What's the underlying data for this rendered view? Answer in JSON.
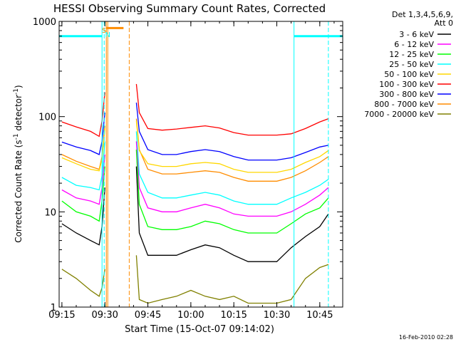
{
  "chart_data": {
    "type": "line",
    "title": "HESSI Observing Summary Count Rates, Corrected",
    "xlabel": "Start Time (15-Oct-07 09:14:02)",
    "ylabel": "Corrected Count Rate (s",
    "ylabel_sup": "-1",
    "ylabel_mid": " detector",
    "ylabel_end": ")",
    "yscale": "log",
    "ylim": [
      1,
      1000
    ],
    "xlim": [
      "09:14:02",
      "10:53:00"
    ],
    "x_ticks": [
      "09:15",
      "09:30",
      "09:45",
      "10:00",
      "10:15",
      "10:30",
      "10:45"
    ],
    "y_ticks": [
      "1",
      "10",
      "100",
      "1000"
    ],
    "legend": {
      "position": "top-right",
      "header": [
        "Det 1,3,4,5,6,9,",
        "Att 0"
      ],
      "entries": [
        {
          "label": "3 - 6 keV",
          "color": "#000000"
        },
        {
          "label": "6 - 12 keV",
          "color": "#ff00ff"
        },
        {
          "label": "12 - 25 keV",
          "color": "#00ff00"
        },
        {
          "label": "25 - 50 keV",
          "color": "#00ffff"
        },
        {
          "label": "50 - 100 keV",
          "color": "#ffd700"
        },
        {
          "label": "100 - 300 keV",
          "color": "#ff0000"
        },
        {
          "label": "300 - 800 keV",
          "color": "#0000ff"
        },
        {
          "label": "800 - 7000 keV",
          "color": "#ff8c00"
        },
        {
          "label": "7000 - 20000 keV",
          "color": "#808000"
        }
      ]
    },
    "x": [
      "09:15",
      "09:20",
      "09:25",
      "09:28",
      "09:29",
      "09:30",
      "09:31",
      "09:40",
      "09:41",
      "09:42",
      "09:45",
      "09:50",
      "09:55",
      "10:00",
      "10:05",
      "10:10",
      "10:15",
      "10:20",
      "10:25",
      "10:30",
      "10:35",
      "10:40",
      "10:45",
      "10:48"
    ],
    "series": [
      {
        "name": "100 - 300 keV",
        "color": "#ff0000",
        "values": [
          88,
          78,
          70,
          62,
          90,
          180,
          null,
          null,
          220,
          110,
          75,
          72,
          74,
          77,
          80,
          76,
          68,
          64,
          64,
          64,
          66,
          75,
          88,
          95
        ]
      },
      {
        "name": "300 - 800 keV",
        "color": "#0000ff",
        "values": [
          54,
          48,
          44,
          40,
          55,
          110,
          null,
          null,
          140,
          70,
          45,
          40,
          40,
          43,
          45,
          43,
          38,
          35,
          35,
          35,
          37,
          42,
          48,
          50
        ]
      },
      {
        "name": "800 - 7000 keV",
        "color": "#ff8c00",
        "values": [
          40,
          34,
          30,
          28,
          38,
          80,
          null,
          null,
          95,
          45,
          28,
          25,
          25,
          26,
          27,
          26,
          23,
          21,
          21,
          21,
          23,
          27,
          33,
          38
        ]
      },
      {
        "name": "50 - 100 keV",
        "color": "#ffd700",
        "values": [
          37,
          32,
          28,
          27,
          36,
          75,
          null,
          null,
          90,
          44,
          32,
          30,
          30,
          32,
          33,
          32,
          28,
          26,
          26,
          26,
          28,
          33,
          38,
          44
        ]
      },
      {
        "name": "25 - 50 keV",
        "color": "#00ffff",
        "values": [
          23,
          19,
          18,
          17,
          24,
          55,
          null,
          null,
          70,
          25,
          16,
          14,
          14,
          15,
          16,
          15,
          13,
          12,
          12,
          12,
          14,
          16,
          19,
          22
        ]
      },
      {
        "name": "6 - 12 keV",
        "color": "#ff00ff",
        "values": [
          17,
          14,
          13,
          12,
          18,
          40,
          null,
          null,
          55,
          18,
          11,
          10,
          10,
          11,
          12,
          11,
          9.5,
          9,
          9,
          9,
          10,
          12,
          15,
          18
        ]
      },
      {
        "name": "12 - 25 keV",
        "color": "#00ff00",
        "values": [
          13,
          10,
          9,
          8,
          13,
          30,
          null,
          null,
          45,
          12,
          7,
          6.5,
          6.5,
          7,
          8,
          7.5,
          6.5,
          6,
          6,
          6,
          7.5,
          9.5,
          11,
          14
        ]
      },
      {
        "name": "3 - 6 keV",
        "color": "#000000",
        "values": [
          7.5,
          6,
          5,
          4.5,
          7,
          18,
          null,
          null,
          30,
          6,
          3.5,
          3.5,
          3.5,
          4,
          4.5,
          4.2,
          3.5,
          3,
          3,
          3,
          4.2,
          5.5,
          7,
          9.5
        ]
      },
      {
        "name": "7000 - 20000 keV",
        "color": "#808000",
        "values": [
          2.5,
          2,
          1.5,
          1.3,
          1.6,
          2.5,
          null,
          null,
          3.5,
          1.2,
          1.1,
          1.2,
          1.3,
          1.5,
          1.3,
          1.2,
          1.3,
          1.1,
          1.1,
          1.1,
          1.2,
          2,
          2.6,
          2.8
        ]
      }
    ],
    "annotations": {
      "bars": [
        {
          "label": "",
          "color": "#00ffff",
          "from": "09:14:02",
          "to": "09:29:00",
          "y": 700
        },
        {
          "label": "S",
          "color": "#ff8c00",
          "from": "09:30:30",
          "to": "09:36:30",
          "y": 850
        },
        {
          "label": "",
          "color": "#00ffff",
          "from": "10:36:00",
          "to": "10:53:00",
          "y": 700
        }
      ],
      "bar_letters": [
        {
          "text": "S",
          "color": "#ff8c00",
          "at": "09:29:45"
        },
        {
          "text": "N",
          "color": "#00ffff",
          "at": "09:31:00"
        }
      ],
      "vlines": [
        {
          "at": "09:29:00",
          "color": "#00ffff",
          "style": "solid"
        },
        {
          "at": "09:29:45",
          "color": "#00ffff",
          "style": "dashed"
        },
        {
          "at": "09:30:30",
          "color": "#ff8c00",
          "style": "solid"
        },
        {
          "at": "09:31:00",
          "color": "#ff8c00",
          "style": "solid"
        },
        {
          "at": "09:38:30",
          "color": "#ff8c00",
          "style": "dashed"
        },
        {
          "at": "10:36:00",
          "color": "#00ffff",
          "style": "solid"
        },
        {
          "at": "10:48:00",
          "color": "#00ffff",
          "style": "dashed"
        }
      ]
    },
    "footer_date": "16-Feb-2010 02:28"
  }
}
